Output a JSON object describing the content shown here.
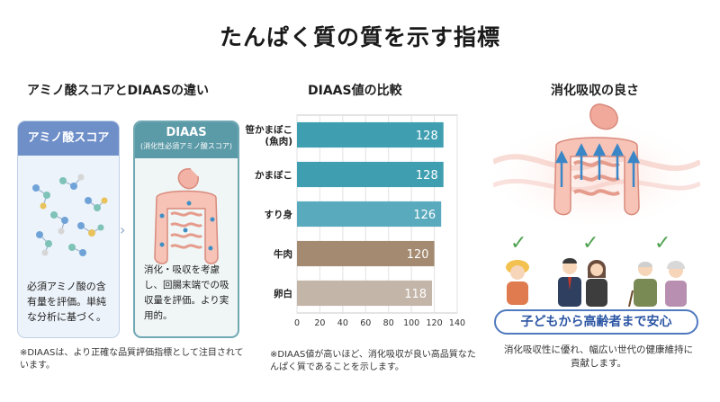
{
  "title": "たんぱく質の質を示す指標",
  "left": {
    "heading": "アミノ酸スコアとDIAASの違い",
    "amino_card": {
      "title": "アミノ酸スコア",
      "text": "必須アミノ酸の含有量を評価。単純な分析に基づく。"
    },
    "diaas_card": {
      "title": "DIAAS",
      "subtitle": "(消化性必須アミノ酸スコア)",
      "text": "消化・吸収を考慮し、回腸末端での吸収量を評価。より実用的。"
    },
    "arrow": "›",
    "note": "※DIAASは、より正確な品質評価指標として注目されています。"
  },
  "middle": {
    "heading": "DIAAS値の比較",
    "note": "※DIAAS値が高いほど、消化吸収が良い高品質なたんぱく質であることを示します。"
  },
  "chart_data": {
    "type": "bar",
    "orientation": "horizontal",
    "title": "DIAAS値の比較",
    "categories": [
      "笹かまぼこ(魚肉)",
      "かまぼこ",
      "すり身",
      "牛肉",
      "卵白"
    ],
    "category_lines": [
      [
        "笹かまぼこ",
        "(魚肉)"
      ],
      [
        "かまぼこ"
      ],
      [
        "すり身"
      ],
      [
        "牛肉"
      ],
      [
        "卵白"
      ]
    ],
    "values": [
      128,
      128,
      126,
      120,
      118
    ],
    "colors": [
      "#3f9fb1",
      "#3f9fb1",
      "#5aaabd",
      "#a48a70",
      "#c4b5a9"
    ],
    "xlim": [
      0,
      140
    ],
    "xticks": [
      0,
      20,
      40,
      60,
      80,
      100,
      120,
      140
    ],
    "grid": true
  },
  "right": {
    "heading": "消化吸収の良さ",
    "check_icon": "✓",
    "banner": "子どもから高齢者まで安心",
    "note": "消化吸収性に優れ、幅広い世代の健康維持に貢献します。"
  }
}
